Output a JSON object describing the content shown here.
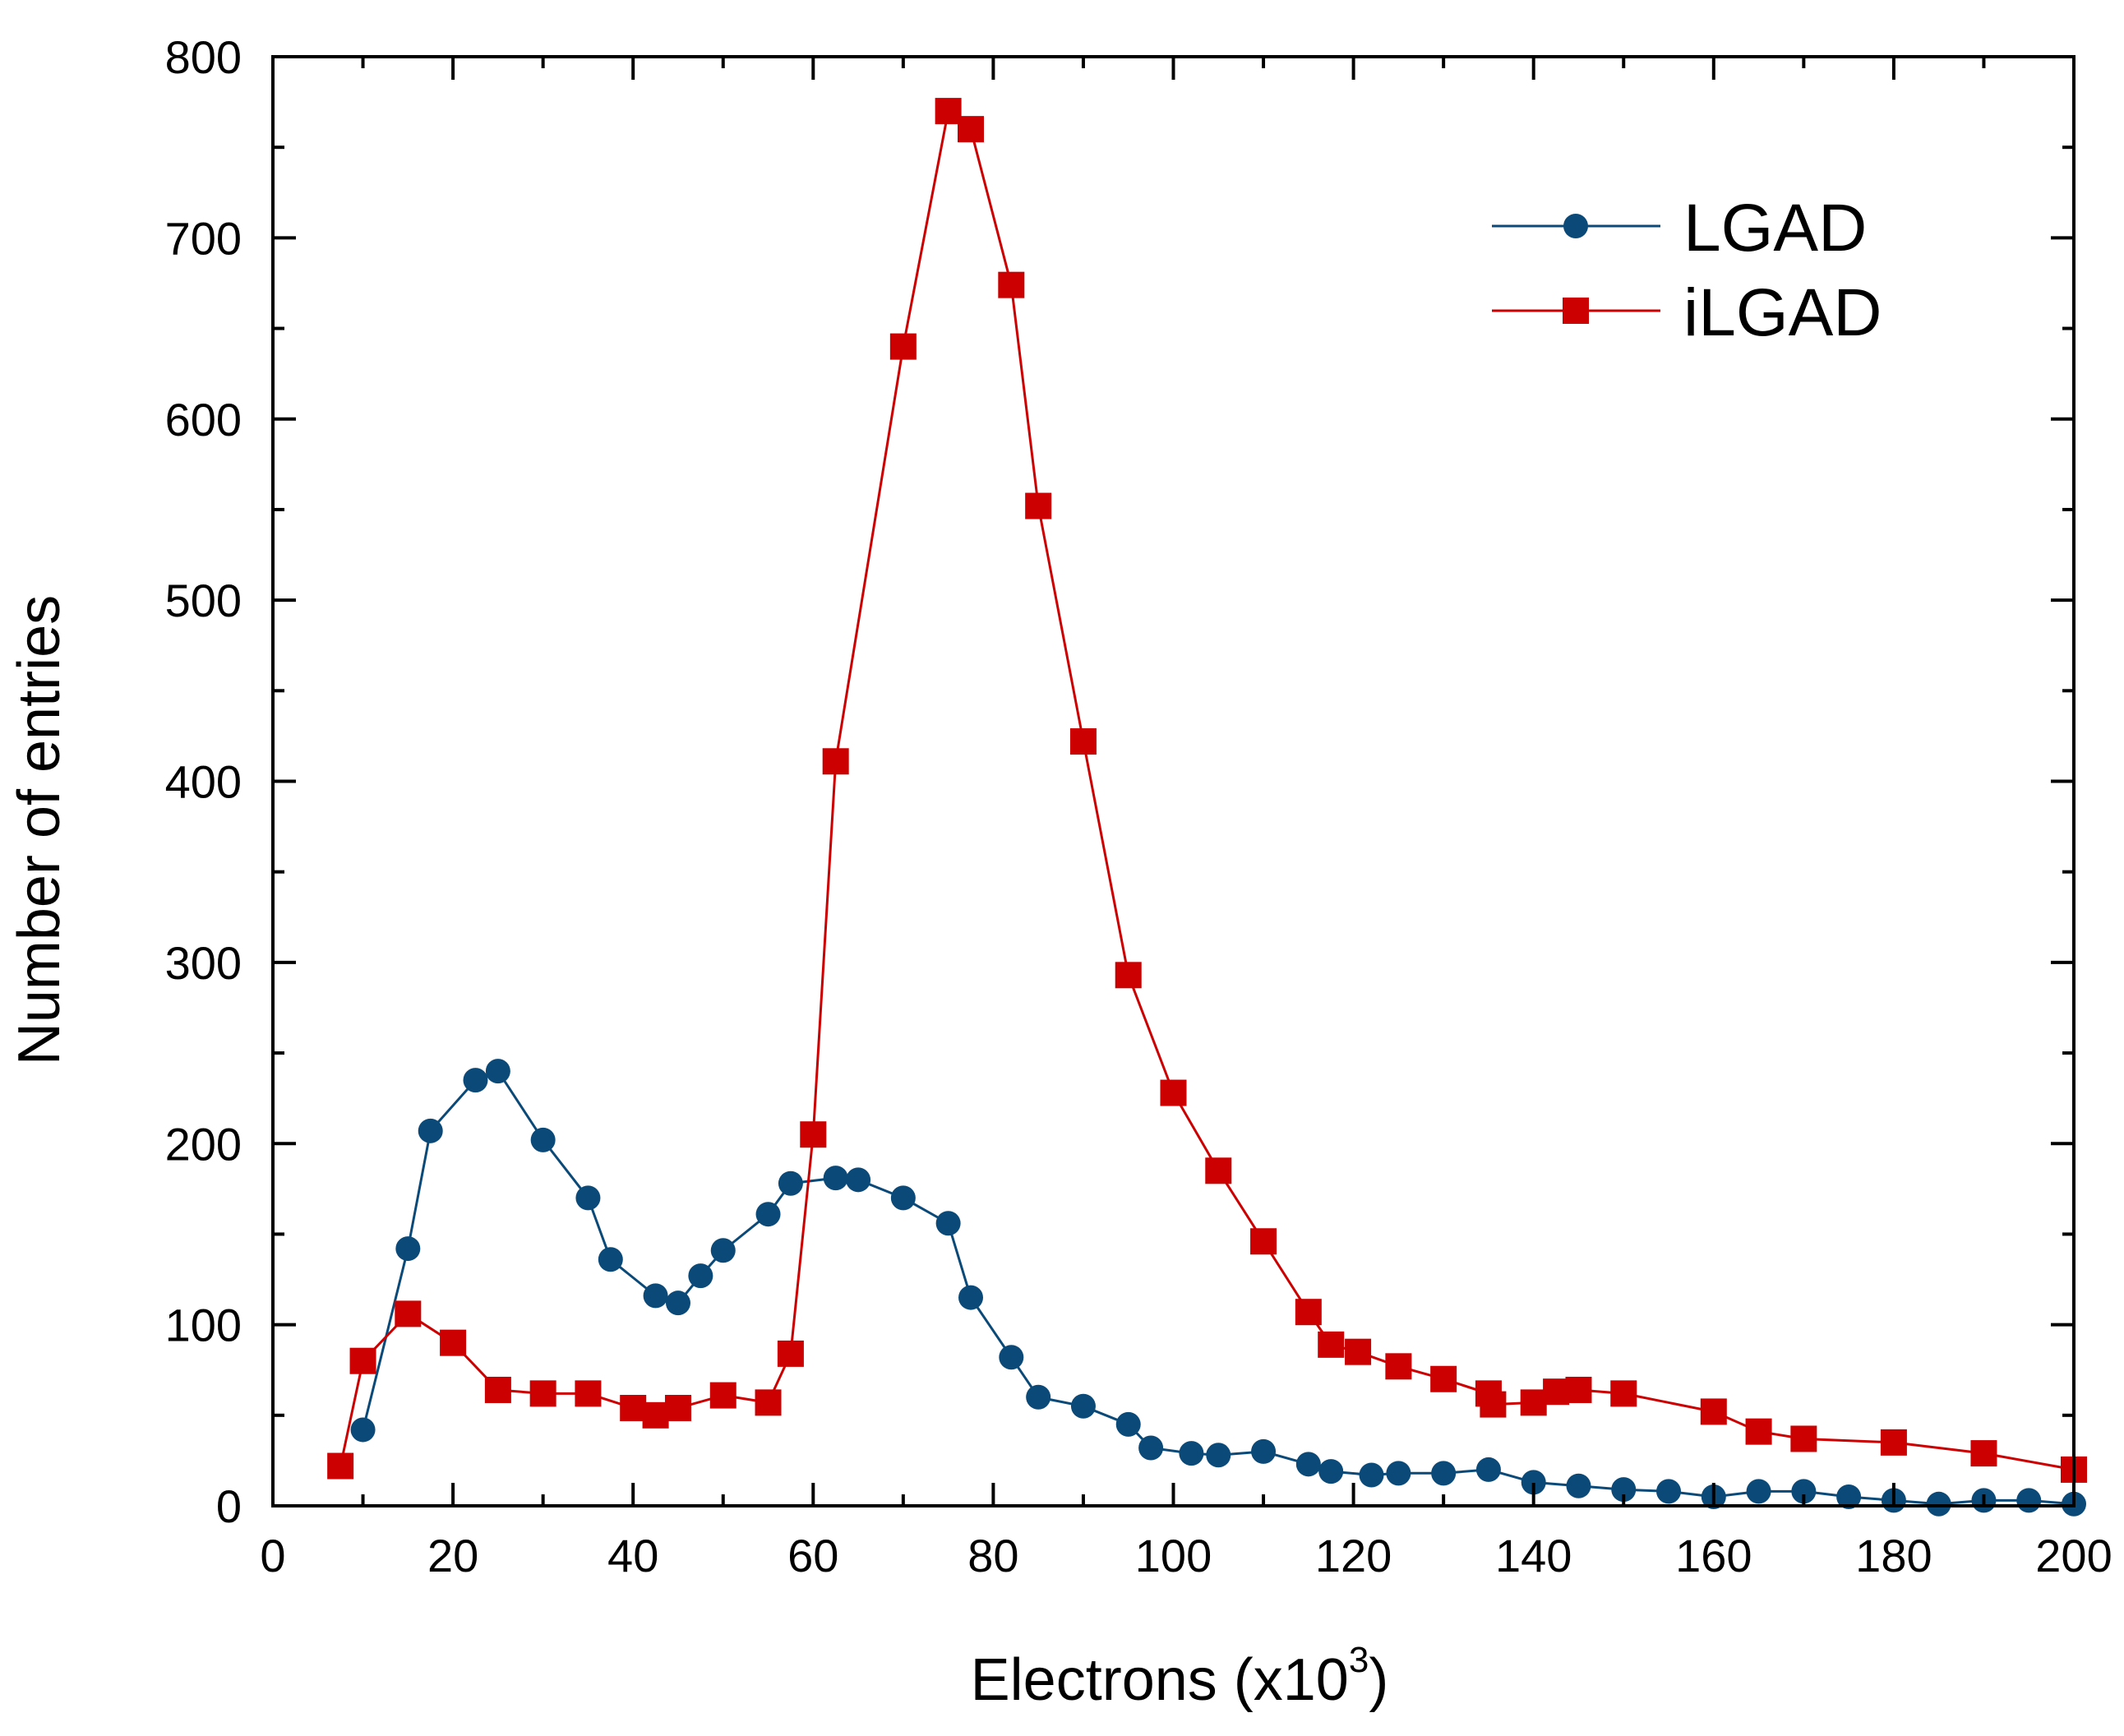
{
  "chart_data": {
    "type": "line",
    "title": "",
    "xlabel": "Electrons (x10",
    "xlabel_sup": "3",
    "xlabel_close": ")",
    "ylabel": "Number of entries",
    "xlim": [
      0,
      200
    ],
    "ylim": [
      0,
      800
    ],
    "xticks": [
      0,
      20,
      40,
      60,
      80,
      100,
      120,
      140,
      160,
      180,
      200
    ],
    "xtick_labels": [
      "0",
      "20",
      "40",
      "60",
      "80",
      "100",
      "120",
      "140",
      "160",
      "180",
      "200"
    ],
    "yticks": [
      0,
      100,
      200,
      300,
      400,
      500,
      600,
      700,
      800
    ],
    "ytick_labels": [
      "0",
      "100",
      "200",
      "300",
      "400",
      "500",
      "600",
      "700",
      "800"
    ],
    "grid": false,
    "legend_position": "top-right",
    "series": [
      {
        "name": "LGAD",
        "marker": "circle",
        "color": "#0b4a78",
        "points": [
          [
            10,
            42
          ],
          [
            15,
            142
          ],
          [
            17.5,
            207
          ],
          [
            22.5,
            235
          ],
          [
            25,
            240
          ],
          [
            30,
            202
          ],
          [
            35,
            170
          ],
          [
            37.5,
            136
          ],
          [
            42.5,
            116
          ],
          [
            45,
            112
          ],
          [
            47.5,
            127
          ],
          [
            50,
            141
          ],
          [
            55,
            161
          ],
          [
            57.5,
            178
          ],
          [
            62.5,
            181
          ],
          [
            65,
            180
          ],
          [
            70,
            170
          ],
          [
            75,
            156
          ],
          [
            77.5,
            115
          ],
          [
            82,
            82
          ],
          [
            85,
            60
          ],
          [
            90,
            55
          ],
          [
            95,
            45
          ],
          [
            97.5,
            32
          ],
          [
            102,
            29
          ],
          [
            105,
            28
          ],
          [
            110,
            30
          ],
          [
            115,
            23
          ],
          [
            117.5,
            19
          ],
          [
            122,
            17
          ],
          [
            125,
            18
          ],
          [
            130,
            18
          ],
          [
            135,
            20
          ],
          [
            140,
            13
          ],
          [
            145,
            11
          ],
          [
            150,
            9
          ],
          [
            155,
            8
          ],
          [
            160,
            5
          ],
          [
            165,
            8
          ],
          [
            170,
            8
          ],
          [
            175,
            5
          ],
          [
            180,
            3
          ],
          [
            185,
            1
          ],
          [
            190,
            3
          ],
          [
            195,
            3
          ],
          [
            200,
            1
          ]
        ]
      },
      {
        "name": "iLGAD",
        "marker": "square",
        "color": "#cc0000",
        "points": [
          [
            7.5,
            22
          ],
          [
            10,
            80
          ],
          [
            15,
            106
          ],
          [
            20,
            90
          ],
          [
            25,
            64
          ],
          [
            30,
            62
          ],
          [
            35,
            62
          ],
          [
            40,
            54
          ],
          [
            42.5,
            50
          ],
          [
            45,
            54
          ],
          [
            50,
            61
          ],
          [
            55,
            57
          ],
          [
            57.5,
            84
          ],
          [
            60,
            205
          ],
          [
            62.5,
            411
          ],
          [
            70,
            640
          ],
          [
            75,
            770
          ],
          [
            77.5,
            760
          ],
          [
            82,
            674
          ],
          [
            85,
            552
          ],
          [
            90,
            422
          ],
          [
            95,
            293
          ],
          [
            100,
            228
          ],
          [
            105,
            185
          ],
          [
            110,
            146
          ],
          [
            115,
            107
          ],
          [
            117.5,
            89
          ],
          [
            120.5,
            85
          ],
          [
            125,
            77
          ],
          [
            130,
            70
          ],
          [
            135,
            62
          ],
          [
            135.5,
            56
          ],
          [
            140,
            57
          ],
          [
            142.5,
            63
          ],
          [
            145,
            64
          ],
          [
            150,
            62
          ],
          [
            160,
            52
          ],
          [
            165,
            41
          ],
          [
            170,
            37
          ],
          [
            180,
            35
          ],
          [
            190,
            29
          ],
          [
            200,
            20
          ]
        ]
      }
    ]
  }
}
